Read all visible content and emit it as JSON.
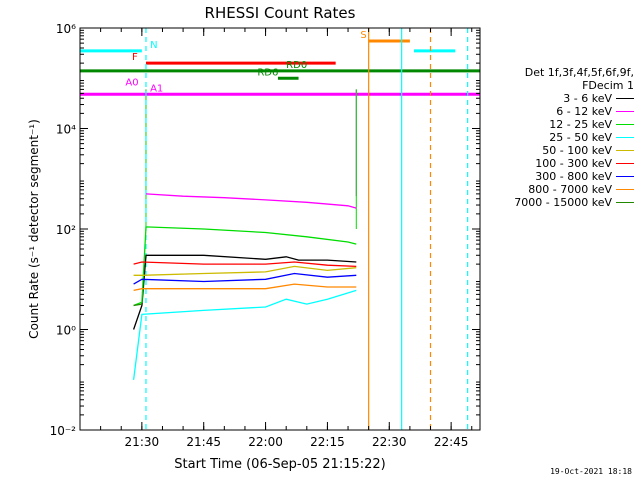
{
  "chart_data": {
    "type": "line",
    "title": "RHESSI Count Rates",
    "xlabel": "Start Time (06-Sep-05 21:15:22)",
    "ylabel": "Count Rate (s⁻¹ detector segment⁻¹)",
    "y_scale": "log",
    "ylim": [
      0.01,
      1000000
    ],
    "xlim": [
      "21:15",
      "22:52"
    ],
    "x_ticks": [
      "21:30",
      "21:45",
      "22:00",
      "22:15",
      "22:30",
      "22:45"
    ],
    "y_ticks": [
      "10⁻²",
      "10⁰",
      "10²",
      "10⁴",
      "10⁶"
    ],
    "legend_header": [
      "Det 1f,3f,4f,5f,6f,9f,",
      "FDecim 1"
    ],
    "legend_position": "right",
    "series": [
      {
        "name": "3 - 6 keV",
        "color": "#000000",
        "x": [
          "21:28",
          "21:30",
          "21:31",
          "21:45",
          "22:00",
          "22:05",
          "22:08",
          "22:15",
          "22:22"
        ],
        "values": [
          1,
          3,
          30,
          30,
          25,
          28,
          24,
          24,
          22
        ]
      },
      {
        "name": "6 - 12 keV",
        "color": "#ff00ff",
        "x": [
          "21:31",
          "21:40",
          "21:50",
          "22:00",
          "22:10",
          "22:20",
          "22:22"
        ],
        "values": [
          500,
          450,
          420,
          380,
          340,
          290,
          260
        ]
      },
      {
        "name": "12 - 25 keV",
        "color": "#00dd00",
        "x": [
          "21:28",
          "21:30",
          "21:31",
          "21:45",
          "22:00",
          "22:10",
          "22:20",
          "22:22"
        ],
        "values": [
          3,
          3.5,
          110,
          100,
          85,
          70,
          55,
          50
        ]
      },
      {
        "name": "25 - 50 keV",
        "color": "#00ffff",
        "x": [
          "21:28",
          "21:30",
          "21:45",
          "22:00",
          "22:05",
          "22:10",
          "22:15",
          "22:22"
        ],
        "values": [
          0.1,
          2,
          2.4,
          2.8,
          4,
          3.2,
          4,
          6
        ]
      },
      {
        "name": "50 - 100 keV",
        "color": "#ccbb00",
        "x": [
          "21:28",
          "21:30",
          "21:45",
          "22:00",
          "22:07",
          "22:15",
          "22:22"
        ],
        "values": [
          12,
          12,
          13,
          14,
          18,
          15,
          17
        ]
      },
      {
        "name": "100 - 300 keV",
        "color": "#ff0000",
        "x": [
          "21:28",
          "21:30",
          "21:45",
          "22:00",
          "22:07",
          "22:15",
          "22:22"
        ],
        "values": [
          20,
          22,
          20,
          20,
          22,
          19,
          18
        ]
      },
      {
        "name": "300 - 800 keV",
        "color": "#0000ff",
        "x": [
          "21:28",
          "21:30",
          "21:45",
          "22:00",
          "22:07",
          "22:15",
          "22:22"
        ],
        "values": [
          8,
          10,
          9,
          10,
          13,
          11,
          12
        ]
      },
      {
        "name": "800 - 7000 keV",
        "color": "#ff8800",
        "x": [
          "21:28",
          "21:30",
          "21:45",
          "22:00",
          "22:07",
          "22:15",
          "22:22"
        ],
        "values": [
          6,
          6.5,
          6.5,
          6.5,
          8,
          7,
          7
        ]
      },
      {
        "name": "7000 - 15000 keV",
        "color": "#228800",
        "x": [
          "21:28",
          "21:30"
        ],
        "values": [
          3,
          3.2
        ]
      }
    ],
    "flags": [
      {
        "label": "N",
        "color": "#00ffff",
        "segments": [
          [
            "21:15",
            "21:30"
          ],
          [
            "22:36",
            "22:46"
          ]
        ],
        "value": 350000
      },
      {
        "label": "F",
        "color": "#ff0000",
        "segments": [
          [
            "21:31",
            "22:17"
          ]
        ],
        "value": 200000
      },
      {
        "label": "RD0",
        "color": "#008800",
        "segments": [
          [
            "21:15",
            "22:52"
          ]
        ],
        "value": 140000
      },
      {
        "label": "RD6",
        "color": "#008800",
        "segments": [
          [
            "22:03",
            "22:08"
          ]
        ],
        "value": 100000
      },
      {
        "label": "S",
        "color": "#ff8800",
        "segments": [
          [
            "22:25",
            "22:35"
          ]
        ],
        "value": 550000
      },
      {
        "label": "A0",
        "color": "#ff00ff",
        "segments": [
          [
            "21:15",
            "22:52"
          ]
        ],
        "value": 48000
      },
      {
        "label": "A1",
        "color": "#ff00ff",
        "segments": [],
        "value": 48000
      }
    ],
    "vlines": [
      {
        "x": "21:31",
        "color": "#00ffff",
        "style": "dashed"
      },
      {
        "x": "22:25",
        "color": "#ff8800",
        "style": "solid"
      },
      {
        "x": "22:33",
        "color": "#00ffff",
        "style": "solid"
      },
      {
        "x": "22:40",
        "color": "#ff8800",
        "style": "dashed"
      },
      {
        "x": "22:49",
        "color": "#00ffff",
        "style": "dashed"
      }
    ]
  },
  "timestamp": "19-Oct-2021 18:18"
}
